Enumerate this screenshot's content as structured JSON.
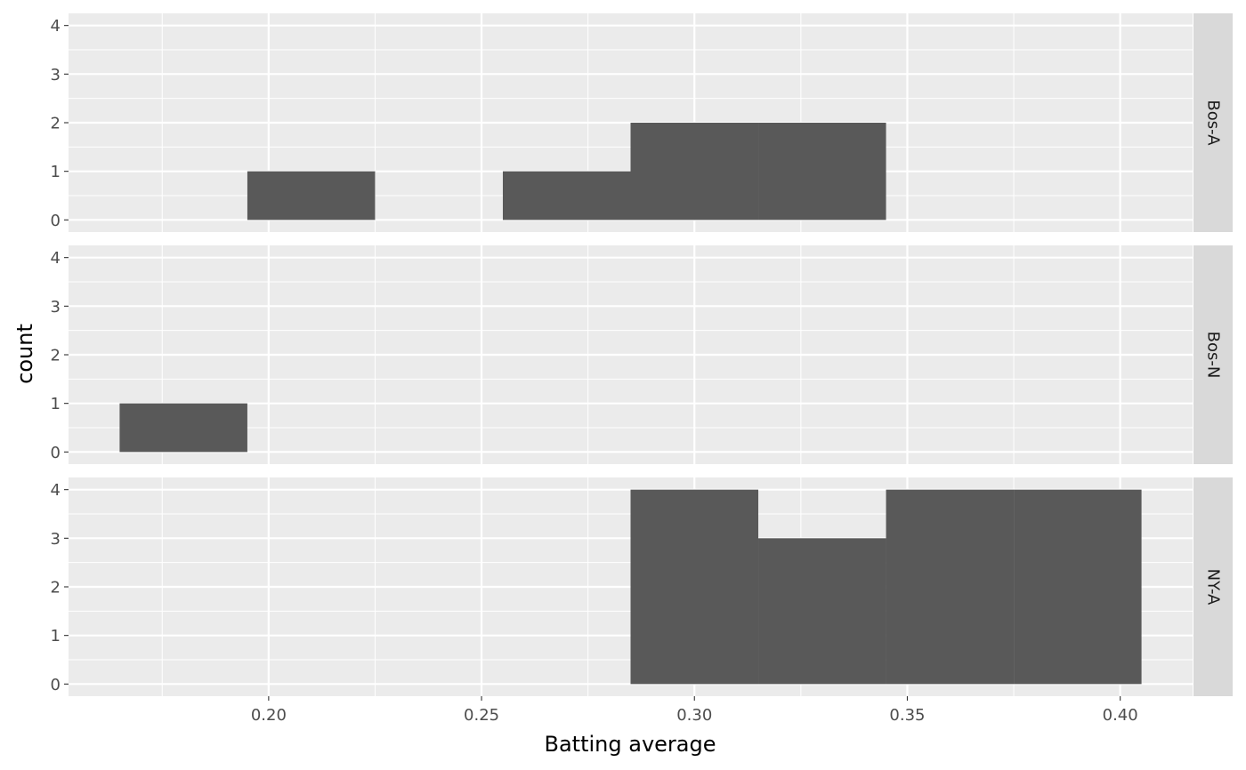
{
  "chart_data": {
    "type": "bar",
    "subtype": "faceted-histogram",
    "xlabel": "Batting average",
    "ylabel": "count",
    "xlim": [
      0.153,
      0.417
    ],
    "ylim": [
      -0.25,
      4.25
    ],
    "x_ticks": [
      {
        "value": 0.2,
        "label": "0.20"
      },
      {
        "value": 0.25,
        "label": "0.25"
      },
      {
        "value": 0.3,
        "label": "0.30"
      },
      {
        "value": 0.35,
        "label": "0.35"
      },
      {
        "value": 0.4,
        "label": "0.40"
      }
    ],
    "y_ticks": [
      {
        "value": 0,
        "label": "0"
      },
      {
        "value": 1,
        "label": "1"
      },
      {
        "value": 2,
        "label": "2"
      },
      {
        "value": 3,
        "label": "3"
      },
      {
        "value": 4,
        "label": "4"
      }
    ],
    "binwidth": 0.03,
    "grid": true,
    "bar_color": "#595959",
    "panel_background": "#ebebeb",
    "strip_background": "#d9d9d9",
    "facets": [
      {
        "label": "Bos-A",
        "bins": [
          {
            "x0": 0.195,
            "x1": 0.225,
            "count": 1
          },
          {
            "x0": 0.255,
            "x1": 0.285,
            "count": 1
          },
          {
            "x0": 0.285,
            "x1": 0.315,
            "count": 2
          },
          {
            "x0": 0.315,
            "x1": 0.345,
            "count": 2
          }
        ]
      },
      {
        "label": "Bos-N",
        "bins": [
          {
            "x0": 0.165,
            "x1": 0.195,
            "count": 1
          }
        ]
      },
      {
        "label": "NY-A",
        "bins": [
          {
            "x0": 0.285,
            "x1": 0.315,
            "count": 4
          },
          {
            "x0": 0.315,
            "x1": 0.345,
            "count": 3
          },
          {
            "x0": 0.345,
            "x1": 0.375,
            "count": 4
          },
          {
            "x0": 0.375,
            "x1": 0.405,
            "count": 4
          }
        ]
      }
    ]
  }
}
